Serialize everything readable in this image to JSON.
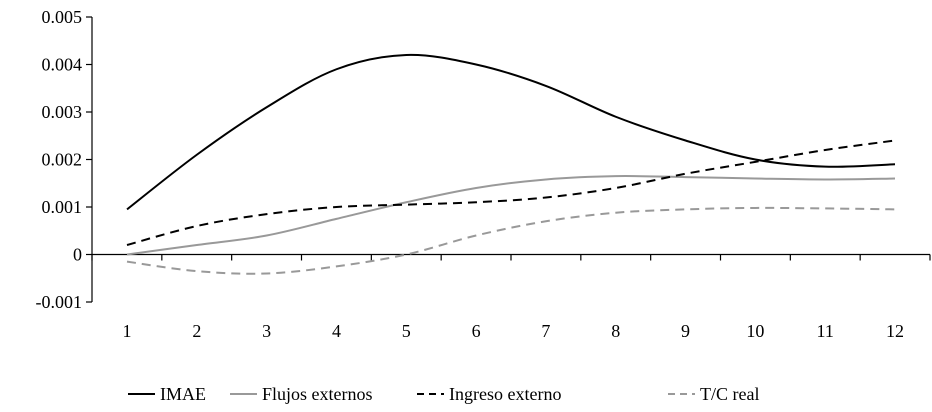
{
  "chart_data": {
    "type": "line",
    "title": "",
    "xlabel": "",
    "ylabel": "",
    "x": [
      1,
      2,
      3,
      4,
      5,
      6,
      7,
      8,
      9,
      10,
      11,
      12
    ],
    "x_tick_labels": [
      "1",
      "2",
      "3",
      "4",
      "5",
      "6",
      "7",
      "8",
      "9",
      "10",
      "11",
      "12"
    ],
    "ylim": [
      -0.001,
      0.005
    ],
    "y_ticks": [
      -0.001,
      0,
      0.001,
      0.002,
      0.003,
      0.004,
      0.005
    ],
    "y_tick_labels": [
      "-0.001",
      "0",
      "0.001",
      "0.002",
      "0.003",
      "0.004",
      "0.005"
    ],
    "grid": false,
    "legend_position": "bottom",
    "series": [
      {
        "name": "IMAE",
        "color": "#000000",
        "dash": "solid",
        "values": [
          0.00095,
          0.0021,
          0.0031,
          0.0039,
          0.0042,
          0.004,
          0.00355,
          0.0029,
          0.0024,
          0.002,
          0.00185,
          0.0019
        ]
      },
      {
        "name": "Flujos externos",
        "color": "#999999",
        "dash": "solid",
        "values": [
          0.0,
          0.0002,
          0.0004,
          0.00075,
          0.0011,
          0.0014,
          0.00158,
          0.00165,
          0.00163,
          0.0016,
          0.00158,
          0.0016
        ]
      },
      {
        "name": "Ingreso externo",
        "color": "#000000",
        "dash": "dashed",
        "values": [
          0.0002,
          0.0006,
          0.00085,
          0.001,
          0.00105,
          0.0011,
          0.0012,
          0.0014,
          0.0017,
          0.00195,
          0.0022,
          0.0024
        ]
      },
      {
        "name": "T/C real",
        "color": "#999999",
        "dash": "dashed",
        "values": [
          -0.00015,
          -0.00035,
          -0.0004,
          -0.00025,
          0.0,
          0.0004,
          0.0007,
          0.00088,
          0.00095,
          0.00098,
          0.00097,
          0.00095
        ]
      }
    ]
  }
}
